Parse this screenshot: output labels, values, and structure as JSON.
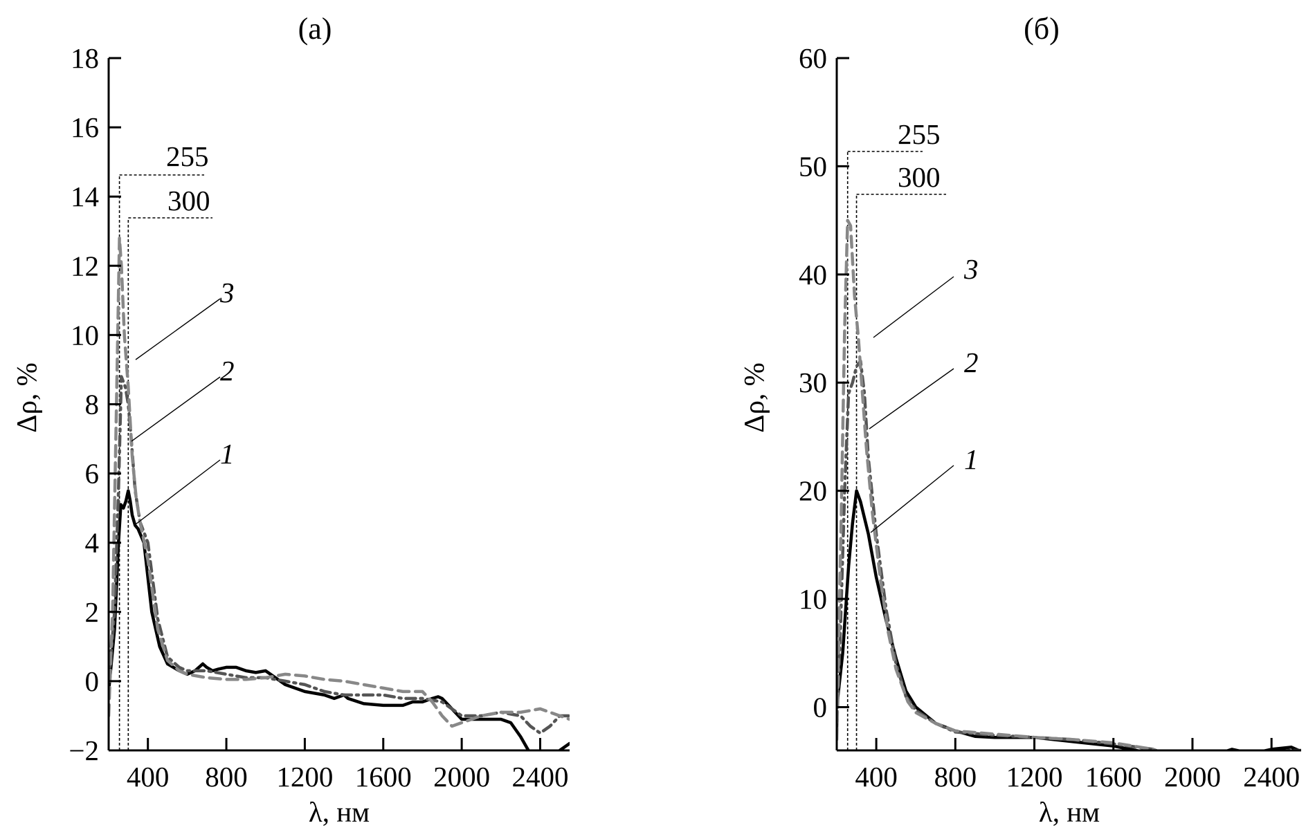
{
  "chart_data": [
    {
      "panel": "(a)",
      "type": "line",
      "title": "(a)",
      "xlabel": "λ,  нм",
      "ylabel": "Δρ,  %",
      "xlim": [
        200,
        2550
      ],
      "ylim": [
        -2,
        18
      ],
      "xticks": [
        400,
        800,
        1200,
        1600,
        2000,
        2400
      ],
      "yticks": [
        -2,
        0,
        2,
        4,
        6,
        8,
        10,
        12,
        14,
        16,
        18
      ],
      "xtick_labels": [
        "400",
        "800",
        "1200",
        "1600",
        "2000",
        "2400"
      ],
      "ytick_labels": [
        "−2",
        "0",
        "2",
        "4",
        "6",
        "8",
        "10",
        "12",
        "14",
        "16",
        "18"
      ],
      "grid": false,
      "annotations": [
        {
          "label": "255",
          "x": 255
        },
        {
          "label": "300",
          "x": 300
        }
      ],
      "series": [
        {
          "label": "1",
          "style": "solid",
          "color": "#000000",
          "x": [
            200,
            230,
            250,
            262,
            275,
            288,
            300,
            310,
            320,
            335,
            350,
            380,
            420,
            460,
            500,
            560,
            600,
            640,
            680,
            700,
            730,
            760,
            800,
            850,
            900,
            950,
            1000,
            1050,
            1100,
            1200,
            1300,
            1350,
            1400,
            1420,
            1500,
            1600,
            1700,
            1750,
            1800,
            1850,
            1880,
            1900,
            1950,
            2000,
            2100,
            2200,
            2250,
            2300,
            2340,
            2400,
            2450,
            2500,
            2550
          ],
          "y": [
            -0.3,
            1.5,
            4.0,
            5.1,
            5.0,
            5.2,
            5.5,
            5.2,
            4.8,
            4.5,
            4.4,
            4.0,
            2.0,
            1.0,
            0.5,
            0.3,
            0.2,
            0.3,
            0.5,
            0.4,
            0.3,
            0.35,
            0.4,
            0.4,
            0.3,
            0.25,
            0.3,
            0.1,
            -0.1,
            -0.3,
            -0.4,
            -0.5,
            -0.4,
            -0.5,
            -0.65,
            -0.7,
            -0.7,
            -0.6,
            -0.6,
            -0.5,
            -0.45,
            -0.5,
            -0.8,
            -1.1,
            -1.1,
            -1.1,
            -1.2,
            -1.6,
            -2.0,
            -2.3,
            -2.3,
            -2.0,
            -1.8
          ]
        },
        {
          "label": "2",
          "style": "dash-dot",
          "color": "#555555",
          "x": [
            200,
            230,
            250,
            265,
            285,
            300,
            315,
            335,
            360,
            400,
            450,
            500,
            560,
            600,
            700,
            800,
            900,
            1000,
            1100,
            1200,
            1300,
            1400,
            1500,
            1600,
            1700,
            1800,
            1900,
            2000,
            2100,
            2200,
            2300,
            2350,
            2400,
            2450,
            2500,
            2550
          ],
          "y": [
            0.0,
            2.0,
            5.5,
            8.8,
            8.5,
            8.0,
            7.0,
            5.5,
            4.6,
            4.0,
            1.8,
            0.7,
            0.4,
            0.3,
            0.3,
            0.2,
            0.1,
            0.1,
            0.0,
            -0.1,
            -0.3,
            -0.4,
            -0.4,
            -0.4,
            -0.5,
            -0.5,
            -0.6,
            -1.0,
            -1.0,
            -0.9,
            -1.0,
            -1.3,
            -1.5,
            -1.3,
            -1.0,
            -1.0
          ]
        },
        {
          "label": "3",
          "style": "dashed",
          "color": "#888888",
          "x": [
            200,
            220,
            240,
            255,
            265,
            280,
            300,
            320,
            340,
            360,
            400,
            450,
            500,
            560,
            600,
            700,
            800,
            900,
            1000,
            1100,
            1200,
            1300,
            1400,
            1500,
            1600,
            1700,
            1800,
            1850,
            1900,
            1950,
            2000,
            2100,
            2200,
            2300,
            2400,
            2450,
            2500,
            2550
          ],
          "y": [
            -1.0,
            2.0,
            8.0,
            12.8,
            12.0,
            10.0,
            8.5,
            6.5,
            5.3,
            4.6,
            3.5,
            1.5,
            0.6,
            0.3,
            0.2,
            0.1,
            0.05,
            0.05,
            0.1,
            0.2,
            0.15,
            0.05,
            0.0,
            -0.1,
            -0.2,
            -0.3,
            -0.3,
            -0.6,
            -1.0,
            -1.3,
            -1.2,
            -1.0,
            -0.9,
            -0.9,
            -0.8,
            -0.9,
            -1.0,
            -1.1
          ]
        }
      ]
    },
    {
      "panel": "(б)",
      "type": "line",
      "title": "(б)",
      "xlabel": "λ,  нм",
      "ylabel": "Δρ,  %",
      "xlim": [
        200,
        2550
      ],
      "ylim": [
        -4,
        60
      ],
      "xticks": [
        400,
        800,
        1200,
        1600,
        2000,
        2400
      ],
      "yticks": [
        0,
        10,
        20,
        30,
        40,
        50,
        60
      ],
      "xtick_labels": [
        "400",
        "800",
        "1200",
        "1600",
        "2000",
        "2400"
      ],
      "ytick_labels": [
        "0",
        "10",
        "20",
        "30",
        "40",
        "50",
        "60"
      ],
      "grid": false,
      "annotations": [
        {
          "label": "255",
          "x": 255
        },
        {
          "label": "300",
          "x": 300
        }
      ],
      "series": [
        {
          "label": "1",
          "style": "solid",
          "color": "#000000",
          "x": [
            200,
            230,
            260,
            280,
            300,
            320,
            360,
            400,
            450,
            500,
            550,
            600,
            700,
            800,
            900,
            1000,
            1200,
            1400,
            1600,
            1800,
            2000,
            2100,
            2200,
            2300,
            2400,
            2500,
            2550
          ],
          "y": [
            0.0,
            5.0,
            13.0,
            17.0,
            20.0,
            19.0,
            16.0,
            12.0,
            8.0,
            4.5,
            1.5,
            0.0,
            -1.5,
            -2.2,
            -2.7,
            -2.8,
            -2.8,
            -3.2,
            -3.6,
            -4.3,
            -4.6,
            -4.5,
            -3.9,
            -4.3,
            -3.9,
            -3.7,
            -4.1
          ]
        },
        {
          "label": "2",
          "style": "dash-dot",
          "color": "#555555",
          "x": [
            200,
            220,
            240,
            260,
            280,
            300,
            320,
            340,
            360,
            400,
            450,
            500,
            550,
            600,
            700,
            800,
            1000,
            1200,
            1400,
            1600,
            1800,
            1900,
            2000,
            2100,
            2200,
            2300,
            2400,
            2500,
            2550
          ],
          "y": [
            -2.0,
            8.0,
            20.0,
            29.0,
            30.0,
            31.5,
            32.0,
            29.0,
            23.0,
            16.0,
            9.0,
            4.0,
            1.0,
            -0.3,
            -1.5,
            -2.3,
            -2.6,
            -2.8,
            -3.0,
            -3.4,
            -3.9,
            -4.6,
            -5.2,
            -5.0,
            -4.6,
            -4.3,
            -4.1,
            -4.0,
            -4.0
          ]
        },
        {
          "label": "3",
          "style": "dashed",
          "color": "#888888",
          "x": [
            200,
            220,
            240,
            255,
            270,
            290,
            310,
            330,
            350,
            380,
            420,
            460,
            500,
            560,
            600,
            700,
            800,
            1000,
            1200,
            1400,
            1600,
            1800,
            1900,
            2000,
            2100,
            2200,
            2300,
            2400,
            2500,
            2550
          ],
          "y": [
            -3.0,
            15.0,
            35.0,
            45.0,
            44.5,
            38.0,
            34.0,
            29.0,
            24.0,
            18.0,
            12.0,
            7.0,
            3.5,
            0.5,
            -0.5,
            -1.5,
            -2.2,
            -2.5,
            -2.8,
            -3.0,
            -3.3,
            -3.9,
            -4.8,
            -5.5,
            -5.3,
            -4.8,
            -4.5,
            -4.3,
            -4.2,
            -4.3
          ]
        }
      ]
    }
  ]
}
